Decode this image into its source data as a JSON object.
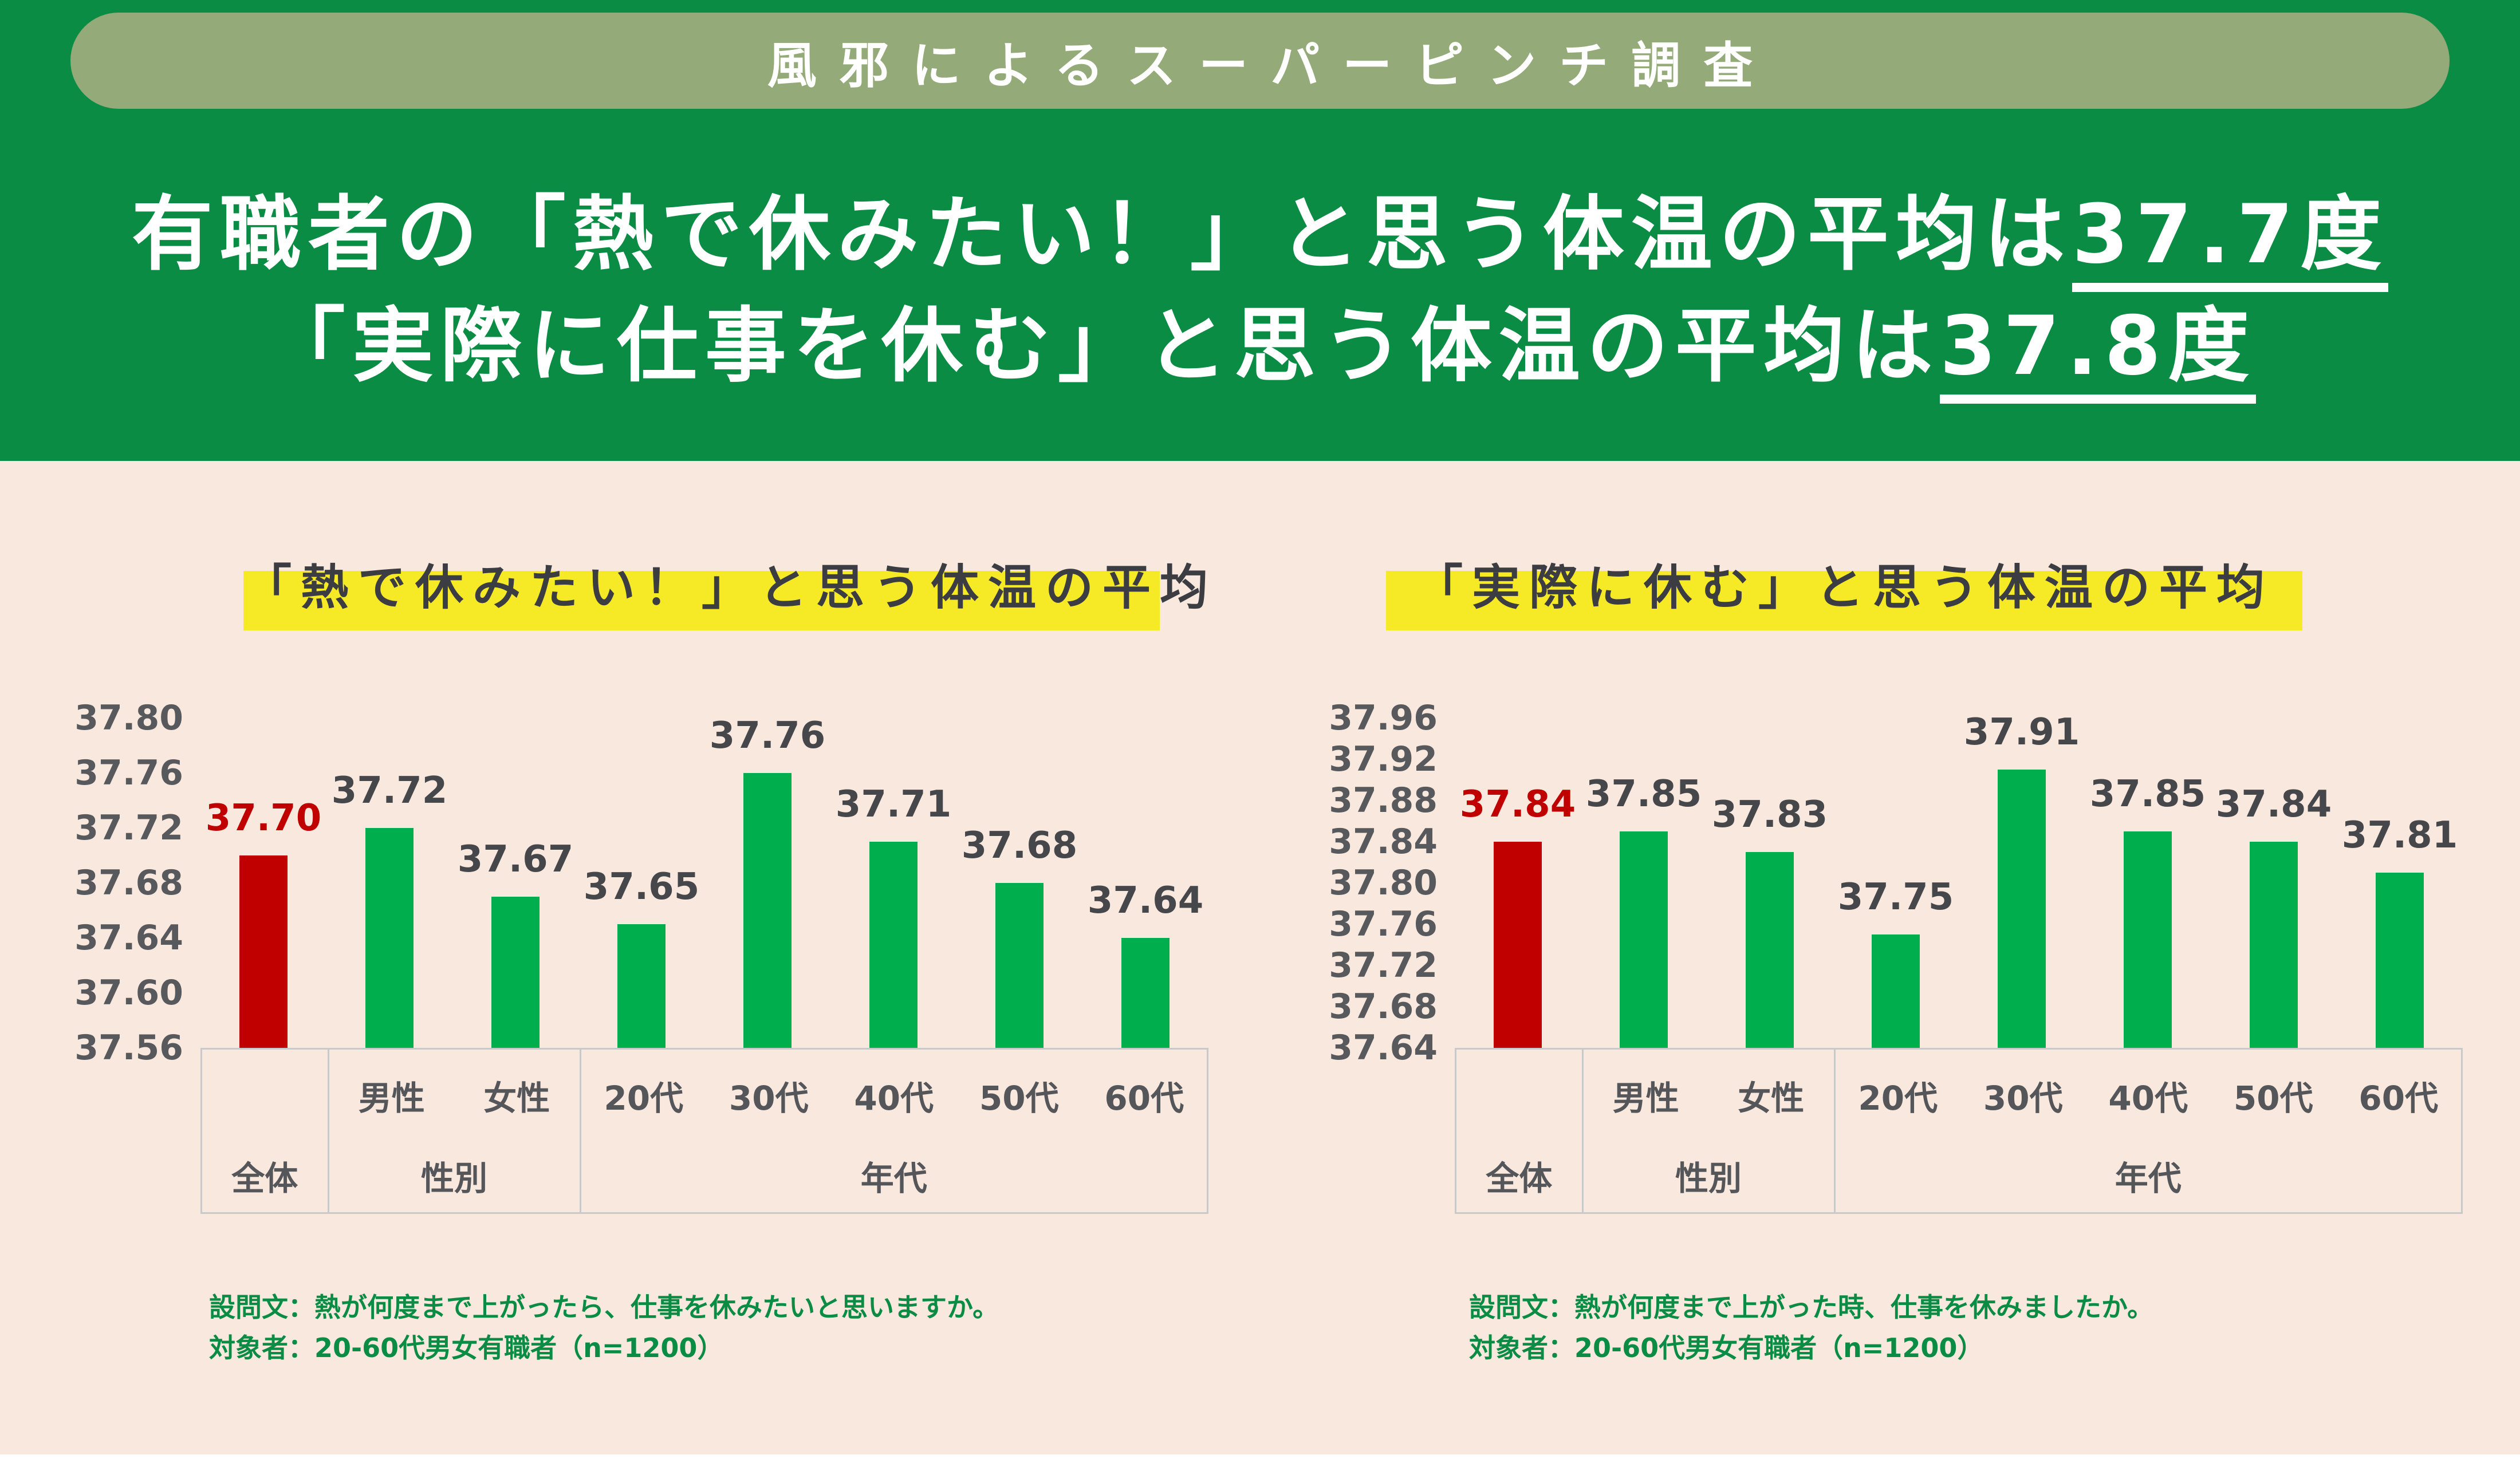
{
  "page": {
    "banner_label": "風邪によるスーパーピンチ調査",
    "title_line1_prefix": "有職者の「熱で休みたい！」と思う体温の平均は",
    "title_line1_value": "37.7度",
    "title_line2_prefix": "「実際に仕事を休む」と思う体温の平均は",
    "title_line2_value": "37.8度"
  },
  "colors": {
    "header_green": "#0a8c45",
    "banner_olive": "#95aa79",
    "body_pink": "#f9e8de",
    "highlight_yellow": "#f6e926",
    "bar_green": "#00ae4e",
    "bar_red": "#c00000",
    "footnote_green": "#0a8c45",
    "label_gray": "#55565a"
  },
  "chart_data": [
    {
      "type": "bar",
      "title": "「熱で休みたい！」と思う体温の平均",
      "categories": [
        "全体",
        "男性",
        "女性",
        "20代",
        "30代",
        "40代",
        "50代",
        "60代"
      ],
      "values": [
        37.7,
        37.72,
        37.67,
        37.65,
        37.76,
        37.71,
        37.68,
        37.64
      ],
      "highlight_index": 0,
      "y_ticks": [
        "37.80",
        "37.76",
        "37.72",
        "37.68",
        "37.64",
        "37.60",
        "37.56"
      ],
      "ylim": [
        37.56,
        37.8
      ],
      "grid": false,
      "legend": false,
      "groups": [
        {
          "label": "全体",
          "cols": 1,
          "cats": []
        },
        {
          "label": "性別",
          "cols": 2,
          "cats": [
            "男性",
            "女性"
          ]
        },
        {
          "label": "年代",
          "cols": 5,
          "cats": [
            "20代",
            "30代",
            "40代",
            "50代",
            "60代"
          ]
        }
      ],
      "footnote_lines": [
        "設問文：熱が何度まで上がったら、仕事を休みたいと思いますか。",
        "対象者：20-60代男女有職者（n=1200）"
      ]
    },
    {
      "type": "bar",
      "title": "「実際に休む」と思う体温の平均",
      "categories": [
        "全体",
        "男性",
        "女性",
        "20代",
        "30代",
        "40代",
        "50代",
        "60代"
      ],
      "values": [
        37.84,
        37.85,
        37.83,
        37.75,
        37.91,
        37.85,
        37.84,
        37.81
      ],
      "highlight_index": 0,
      "y_ticks": [
        "37.96",
        "37.92",
        "37.88",
        "37.84",
        "37.80",
        "37.76",
        "37.72",
        "37.68",
        "37.64"
      ],
      "ylim": [
        37.64,
        37.96
      ],
      "grid": false,
      "legend": false,
      "groups": [
        {
          "label": "全体",
          "cols": 1,
          "cats": []
        },
        {
          "label": "性別",
          "cols": 2,
          "cats": [
            "男性",
            "女性"
          ]
        },
        {
          "label": "年代",
          "cols": 5,
          "cats": [
            "20代",
            "30代",
            "40代",
            "50代",
            "60代"
          ]
        }
      ],
      "footnote_lines": [
        "設問文：熱が何度まで上がった時、仕事を休みましたか。",
        "対象者：20-60代男女有職者（n=1200）"
      ]
    }
  ]
}
